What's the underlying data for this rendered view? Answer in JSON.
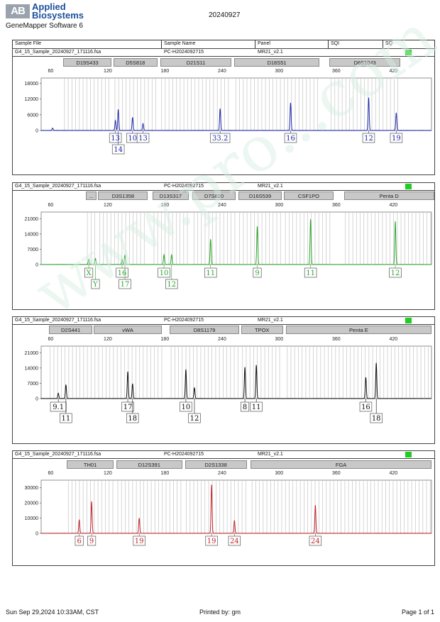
{
  "header": {
    "logo_letters": "AB",
    "brand_line1": "Applied",
    "brand_line2": "Biosystems",
    "software": "GeneMapper Software 6",
    "date": "20240927"
  },
  "table_header": [
    "Sample File",
    "Sample Name",
    "Panel",
    "SQI",
    "SQ"
  ],
  "footer": {
    "timestamp": "Sun Sep 29,2024 10:33AM, CST",
    "printed_by": "Printed by: gm",
    "page": "Page 1 of 1"
  },
  "watermark": "www.pro...com.cn",
  "colors": {
    "blue": "#1f2aa8",
    "green": "#2fa52f",
    "black": "#111111",
    "red": "#c0282d",
    "status": "#22cc22"
  },
  "chart_data": [
    {
      "type": "line",
      "panel": "blue",
      "sample_file": "G4_15_Sample_20240927_171116.fsa",
      "sample_name": "PC-H2024092715",
      "panel_name": "MR21_v2.1",
      "xlim": [
        50,
        460
      ],
      "x_ticks": [
        60,
        120,
        180,
        240,
        300,
        360,
        420
      ],
      "ylim": [
        0,
        20000
      ],
      "y_ticks": [
        0,
        6000,
        12000,
        18000
      ],
      "markers": [
        {
          "name": "D19S433",
          "start": 73,
          "end": 124
        },
        {
          "name": "D5S818",
          "start": 126,
          "end": 172
        },
        {
          "name": "D21S11",
          "start": 175,
          "end": 250
        },
        {
          "name": "D18S51",
          "start": 253,
          "end": 342
        },
        {
          "name": "D6S1043",
          "start": 353,
          "end": 427
        }
      ],
      "peaks": [
        {
          "x": 62,
          "h": 900
        },
        {
          "x": 128,
          "h": 3800
        },
        {
          "x": 131,
          "h": 8000
        },
        {
          "x": 146,
          "h": 5000
        },
        {
          "x": 157,
          "h": 2600
        },
        {
          "x": 238,
          "h": 8300
        },
        {
          "x": 312,
          "h": 10500
        },
        {
          "x": 394,
          "h": 12500
        },
        {
          "x": 423,
          "h": 6700
        }
      ],
      "alleles": [
        {
          "x": 128,
          "label": "13",
          "row": 0
        },
        {
          "x": 131,
          "label": "14",
          "row": 1
        },
        {
          "x": 146,
          "label": "10",
          "row": 0
        },
        {
          "x": 157,
          "label": "13",
          "row": 0
        },
        {
          "x": 238,
          "label": "33.2",
          "row": 0
        },
        {
          "x": 312,
          "label": "16",
          "row": 0
        },
        {
          "x": 394,
          "label": "12",
          "row": 0
        },
        {
          "x": 423,
          "label": "19",
          "row": 0
        }
      ]
    },
    {
      "type": "line",
      "panel": "green",
      "sample_file": "G4_15_Sample_20240927_171116.fsa",
      "sample_name": "PC-H2024092715",
      "panel_name": "MR21_v2.1",
      "xlim": [
        50,
        460
      ],
      "x_ticks": [
        60,
        120,
        180,
        240,
        300,
        360,
        420
      ],
      "ylim": [
        0,
        24000
      ],
      "y_ticks": [
        0,
        7000,
        14000,
        21000
      ],
      "markers": [
        {
          "name": "...",
          "start": 97,
          "end": 108
        },
        {
          "name": "D3S1358",
          "start": 110,
          "end": 162
        },
        {
          "name": "D13S317",
          "start": 167,
          "end": 205
        },
        {
          "name": "D7S820",
          "start": 209,
          "end": 254
        },
        {
          "name": "D16S539",
          "start": 257,
          "end": 303
        },
        {
          "name": "CSF1PO",
          "start": 305,
          "end": 357
        },
        {
          "name": "Penta D",
          "start": 368,
          "end": 463
        }
      ],
      "peaks": [
        {
          "x": 100,
          "h": 2400
        },
        {
          "x": 107,
          "h": 2700
        },
        {
          "x": 135,
          "h": 2400
        },
        {
          "x": 138,
          "h": 4300
        },
        {
          "x": 179,
          "h": 4500
        },
        {
          "x": 187,
          "h": 4400
        },
        {
          "x": 228,
          "h": 11600
        },
        {
          "x": 277,
          "h": 17400
        },
        {
          "x": 333,
          "h": 20700
        },
        {
          "x": 422,
          "h": 19700
        }
      ],
      "alleles": [
        {
          "x": 100,
          "label": "X",
          "row": 0
        },
        {
          "x": 107,
          "label": "Y",
          "row": 1
        },
        {
          "x": 135,
          "label": "16",
          "row": 0
        },
        {
          "x": 138,
          "label": "17",
          "row": 1
        },
        {
          "x": 179,
          "label": "10",
          "row": 0
        },
        {
          "x": 187,
          "label": "12",
          "row": 1
        },
        {
          "x": 228,
          "label": "11",
          "row": 0
        },
        {
          "x": 277,
          "label": "9",
          "row": 0
        },
        {
          "x": 333,
          "label": "11",
          "row": 0
        },
        {
          "x": 422,
          "label": "12",
          "row": 0
        }
      ]
    },
    {
      "type": "line",
      "panel": "black",
      "sample_file": "G4_15_Sample_20240927_171116.fsa",
      "sample_name": "PC-H2024092715",
      "panel_name": "MR21_v2.1",
      "xlim": [
        50,
        460
      ],
      "x_ticks": [
        60,
        120,
        180,
        240,
        300,
        360,
        420
      ],
      "ylim": [
        0,
        24000
      ],
      "y_ticks": [
        0,
        7000,
        14000,
        21000
      ],
      "markers": [
        {
          "name": "D2S441",
          "start": 58,
          "end": 104
        },
        {
          "name": "vWA",
          "start": 105,
          "end": 177
        },
        {
          "name": "D8S1179",
          "start": 185,
          "end": 258
        },
        {
          "name": "TPOX",
          "start": 260,
          "end": 304
        },
        {
          "name": "Penta E",
          "start": 307,
          "end": 460
        }
      ],
      "peaks": [
        {
          "x": 68,
          "h": 2400
        },
        {
          "x": 76,
          "h": 6300
        },
        {
          "x": 141,
          "h": 12300
        },
        {
          "x": 146,
          "h": 6800
        },
        {
          "x": 202,
          "h": 13300
        },
        {
          "x": 211,
          "h": 5000
        },
        {
          "x": 264,
          "h": 14300
        },
        {
          "x": 276,
          "h": 15300
        },
        {
          "x": 391,
          "h": 9700
        },
        {
          "x": 402,
          "h": 16300
        }
      ],
      "alleles": [
        {
          "x": 68,
          "label": "9.1",
          "row": 0
        },
        {
          "x": 76,
          "label": "11",
          "row": 1
        },
        {
          "x": 141,
          "label": "17",
          "row": 0
        },
        {
          "x": 146,
          "label": "18",
          "row": 1
        },
        {
          "x": 202,
          "label": "10",
          "row": 0
        },
        {
          "x": 211,
          "label": "12",
          "row": 1
        },
        {
          "x": 264,
          "label": "8",
          "row": 0
        },
        {
          "x": 276,
          "label": "11",
          "row": 0
        },
        {
          "x": 391,
          "label": "16",
          "row": 0
        },
        {
          "x": 402,
          "label": "18",
          "row": 1
        }
      ]
    },
    {
      "type": "line",
      "panel": "red",
      "sample_file": "G4_15_Sample_20240927_171116.fsa",
      "sample_name": "PC-H2024092715",
      "panel_name": "MR21_v2.1",
      "xlim": [
        50,
        460
      ],
      "x_ticks": [
        60,
        120,
        180,
        240,
        300,
        360,
        420
      ],
      "ylim": [
        0,
        35000
      ],
      "y_ticks": [
        0,
        10000,
        20000,
        30000
      ],
      "markers": [
        {
          "name": "TH01",
          "start": 77,
          "end": 126
        },
        {
          "name": "D12S391",
          "start": 129,
          "end": 198
        },
        {
          "name": "D2S1338",
          "start": 201,
          "end": 266
        },
        {
          "name": "FGA",
          "start": 270,
          "end": 460
        }
      ],
      "peaks": [
        {
          "x": 90,
          "h": 9000
        },
        {
          "x": 103,
          "h": 21000
        },
        {
          "x": 153,
          "h": 10000
        },
        {
          "x": 229,
          "h": 32000
        },
        {
          "x": 253,
          "h": 8500
        },
        {
          "x": 338,
          "h": 18500
        }
      ],
      "alleles": [
        {
          "x": 90,
          "label": "6",
          "row": 0
        },
        {
          "x": 103,
          "label": "9",
          "row": 0
        },
        {
          "x": 153,
          "label": "19",
          "row": 0
        },
        {
          "x": 229,
          "label": "19",
          "row": 0
        },
        {
          "x": 253,
          "label": "24",
          "row": 0
        },
        {
          "x": 338,
          "label": "24",
          "row": 0
        }
      ]
    }
  ]
}
